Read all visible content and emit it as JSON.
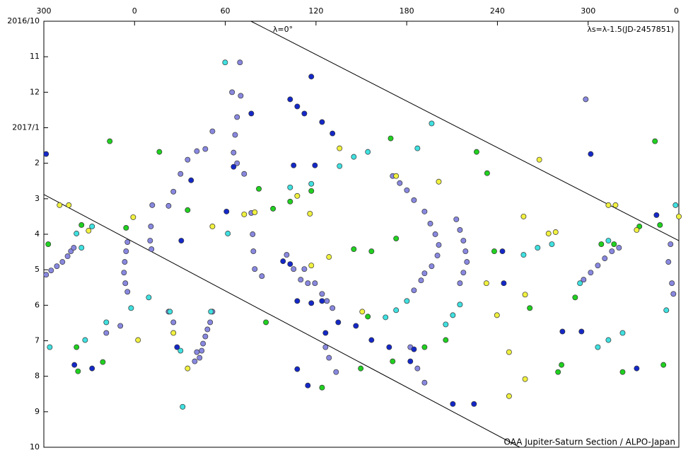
{
  "chart_data": {
    "type": "scatter",
    "y_inverted": true,
    "xlim": [
      -60,
      360
    ],
    "ylim": [
      0,
      12
    ],
    "xticks": [
      {
        "value": -60,
        "label": "300"
      },
      0,
      60,
      120,
      180,
      240,
      300,
      {
        "value": 360,
        "label": "0"
      }
    ],
    "yticks": [
      {
        "value": 0,
        "label": "2016/10"
      },
      {
        "value": 1,
        "label": "11"
      },
      {
        "value": 2,
        "label": "12"
      },
      {
        "value": 3,
        "label": "2017/1"
      },
      {
        "value": 4,
        "label": "2"
      },
      {
        "value": 5,
        "label": "3"
      },
      {
        "value": 6,
        "label": "4"
      },
      {
        "value": 7,
        "label": "5"
      },
      {
        "value": 8,
        "label": "6"
      },
      {
        "value": 9,
        "label": "7"
      },
      {
        "value": 10,
        "label": "8"
      },
      {
        "value": 11,
        "label": "9"
      },
      {
        "value": 12,
        "label": "10"
      }
    ],
    "annotations": [
      "λ=0°",
      "λs=λ-1.5(JD-2457851)",
      "OAA Jupiter-Saturn Section / ALPO-Japan"
    ],
    "lines": [
      {
        "color": "#000000",
        "x": [
          -60,
          254.8
        ],
        "values": [
          4.88,
          12
        ]
      },
      {
        "color": "#000000",
        "x": [
          77,
          360
        ],
        "values": [
          0,
          6.18
        ]
      }
    ],
    "series": [
      {
        "color": "#8888e0",
        "x": [
          -58.5,
          -55.2,
          -51.4,
          -47.7,
          -44.3,
          -42.1,
          -40.2,
          -4.7,
          -5.6,
          -6.5,
          -7.0,
          -6.1,
          -4.7,
          11.7,
          10.8,
          10.3,
          11.2,
          51.5,
          46.8,
          41.2,
          35.1,
          30.4,
          25.7,
          22.5,
          51.5,
          50,
          48.2,
          46.8,
          45.3,
          44.4,
          43,
          41.2,
          39.8,
          70.2,
          67.8,
          66.5,
          65.5,
          67.8,
          72.5,
          77.2,
          78.1,
          78.6,
          79.5,
          84.2,
          100.6,
          105.2,
          109.9,
          112.3,
          114.6,
          119.3,
          124,
          127.2,
          130.9,
          126.3,
          128.6,
          133.3,
          170.7,
          175.4,
          180.1,
          184.8,
          191.8,
          195.6,
          198.9,
          201.2,
          200.3,
          196.5,
          191.8,
          189.5,
          184.8,
          212.8,
          215.2,
          217.5,
          218.9,
          219.8,
          217.5,
          215.2,
          182.4,
          187.1,
          191.8,
          297,
          301.7,
          306.4,
          311,
          315.7,
          320.4,
          354.5,
          353.1,
          355.4,
          356.4,
          22.5,
          25.7,
          -9.4,
          -18.7,
          64.5,
          69.7,
          298.4
        ],
        "values": [
          7.14,
          7.02,
          6.9,
          6.78,
          6.62,
          6.48,
          6.38,
          6.22,
          6.48,
          6.78,
          7.08,
          7.38,
          7.62,
          5.18,
          5.78,
          6.18,
          6.42,
          3.1,
          3.6,
          3.66,
          3.9,
          4.3,
          4.8,
          5.2,
          8.18,
          8.48,
          8.68,
          8.88,
          9.08,
          9.28,
          9.48,
          9.32,
          9.58,
          2.1,
          2.7,
          3.2,
          3.7,
          4.0,
          4.3,
          5.4,
          6.0,
          6.48,
          6.98,
          7.18,
          6.58,
          6.98,
          7.28,
          6.98,
          7.38,
          7.38,
          7.68,
          7.88,
          8.08,
          9.18,
          9.48,
          9.88,
          4.36,
          4.56,
          4.76,
          5.04,
          5.36,
          5.7,
          6.0,
          6.3,
          6.6,
          6.9,
          7.1,
          7.3,
          7.58,
          5.58,
          5.88,
          6.18,
          6.48,
          6.78,
          7.08,
          7.38,
          9.18,
          9.78,
          10.18,
          7.28,
          7.08,
          6.88,
          6.68,
          6.48,
          6.38,
          6.28,
          6.78,
          7.38,
          7.68,
          8.18,
          8.48,
          8.58,
          8.78,
          2.0,
          1.16,
          2.2
        ]
      },
      {
        "color": "#1428c8",
        "x": [
          -58.5,
          102.9,
          107.6,
          112.3,
          116.9,
          124,
          130.9,
          65.5,
          77.2,
          105.2,
          119.3,
          60.8,
          98.2,
          102.9,
          107.6,
          116.9,
          124,
          126.3,
          134.7,
          146.4,
          156.7,
          168.4,
          182.4,
          184.8,
          210.5,
          224.5,
          244.2,
          243.3,
          283,
          295.6,
          301.7,
          345.2,
          332.1,
          -28.1,
          -39.8,
          28.1,
          37.4,
          30.9,
          107.6,
          114.6
        ],
        "values": [
          3.74,
          2.2,
          2.4,
          2.6,
          1.56,
          2.84,
          3.16,
          4.1,
          2.6,
          4.06,
          4.06,
          5.36,
          6.76,
          6.84,
          7.88,
          7.94,
          7.88,
          8.78,
          8.48,
          8.58,
          8.98,
          9.18,
          9.58,
          9.24,
          10.78,
          10.78,
          7.38,
          6.48,
          8.74,
          8.74,
          3.74,
          5.46,
          9.78,
          9.78,
          9.68,
          9.18,
          4.48,
          6.18,
          9.8,
          10.26
        ]
      },
      {
        "color": "#40e0e0",
        "x": [
          59.9,
          -35.1,
          -28.1,
          -38.4,
          -56.1,
          -32.7,
          -18.7,
          -2.3,
          9.4,
          23.4,
          30.4,
          50.5,
          31.8,
          61.7,
          102.9,
          116.9,
          135.6,
          145,
          154.3,
          166,
          173,
          180.1,
          187.1,
          196.5,
          205.8,
          210.5,
          215.2,
          257.3,
          266.6,
          276,
          294.6,
          306.4,
          313.4,
          322.8,
          357.8,
          351.7,
          313.4
        ],
        "values": [
          1.16,
          6.38,
          5.78,
          5.98,
          9.18,
          8.98,
          8.48,
          8.08,
          7.78,
          8.18,
          9.28,
          8.18,
          10.86,
          5.98,
          4.68,
          4.58,
          4.08,
          3.82,
          3.68,
          8.34,
          8.14,
          7.88,
          3.58,
          2.88,
          8.54,
          8.28,
          7.98,
          6.58,
          6.38,
          6.28,
          7.38,
          9.18,
          8.98,
          8.78,
          5.18,
          8.14,
          6.18
        ]
      },
      {
        "color": "#20d020",
        "x": [
          -16.4,
          -57.1,
          -35.1,
          -38.4,
          -37.4,
          -21,
          -5.6,
          16.4,
          35.1,
          82.2,
          91.6,
          102.9,
          116.9,
          145,
          156.7,
          149.6,
          170.7,
          169.4,
          173,
          191.8,
          205.8,
          226.2,
          233.2,
          237.9,
          261.4,
          280.1,
          282.4,
          291.4,
          308.7,
          317.1,
          322.8,
          333.9,
          344.2,
          347.5,
          349.8,
          86.9,
          124,
          154.3
        ],
        "values": [
          3.38,
          6.28,
          5.74,
          9.18,
          9.86,
          9.6,
          5.82,
          3.68,
          5.32,
          4.72,
          5.28,
          5.08,
          4.78,
          6.42,
          6.48,
          9.78,
          9.58,
          3.3,
          6.12,
          9.18,
          8.98,
          3.68,
          4.28,
          6.48,
          8.08,
          9.88,
          9.68,
          7.78,
          6.28,
          6.28,
          9.88,
          5.78,
          3.38,
          5.74,
          9.68,
          8.48,
          10.32,
          8.32
        ]
      },
      {
        "color": "#f0f040",
        "x": [
          -49.6,
          -43.5,
          -30.4,
          -0.9,
          2.3,
          25.7,
          35.1,
          51.5,
          72.5,
          79.5,
          107.6,
          116,
          116.9,
          128.6,
          135.6,
          150.6,
          173,
          201.2,
          232.7,
          239.7,
          247.7,
          247.7,
          257.3,
          258.3,
          258.3,
          267.7,
          273.8,
          278.5,
          313.4,
          318.1,
          360,
          332.1
        ],
        "values": [
          5.18,
          5.18,
          5.9,
          5.52,
          8.98,
          8.78,
          9.78,
          5.78,
          5.44,
          5.38,
          4.92,
          5.42,
          6.88,
          6.64,
          3.58,
          8.18,
          4.36,
          4.52,
          7.38,
          8.28,
          9.32,
          10.56,
          5.5,
          7.7,
          10.08,
          3.9,
          5.98,
          5.94,
          5.18,
          5.18,
          5.5,
          5.88
        ]
      }
    ]
  }
}
